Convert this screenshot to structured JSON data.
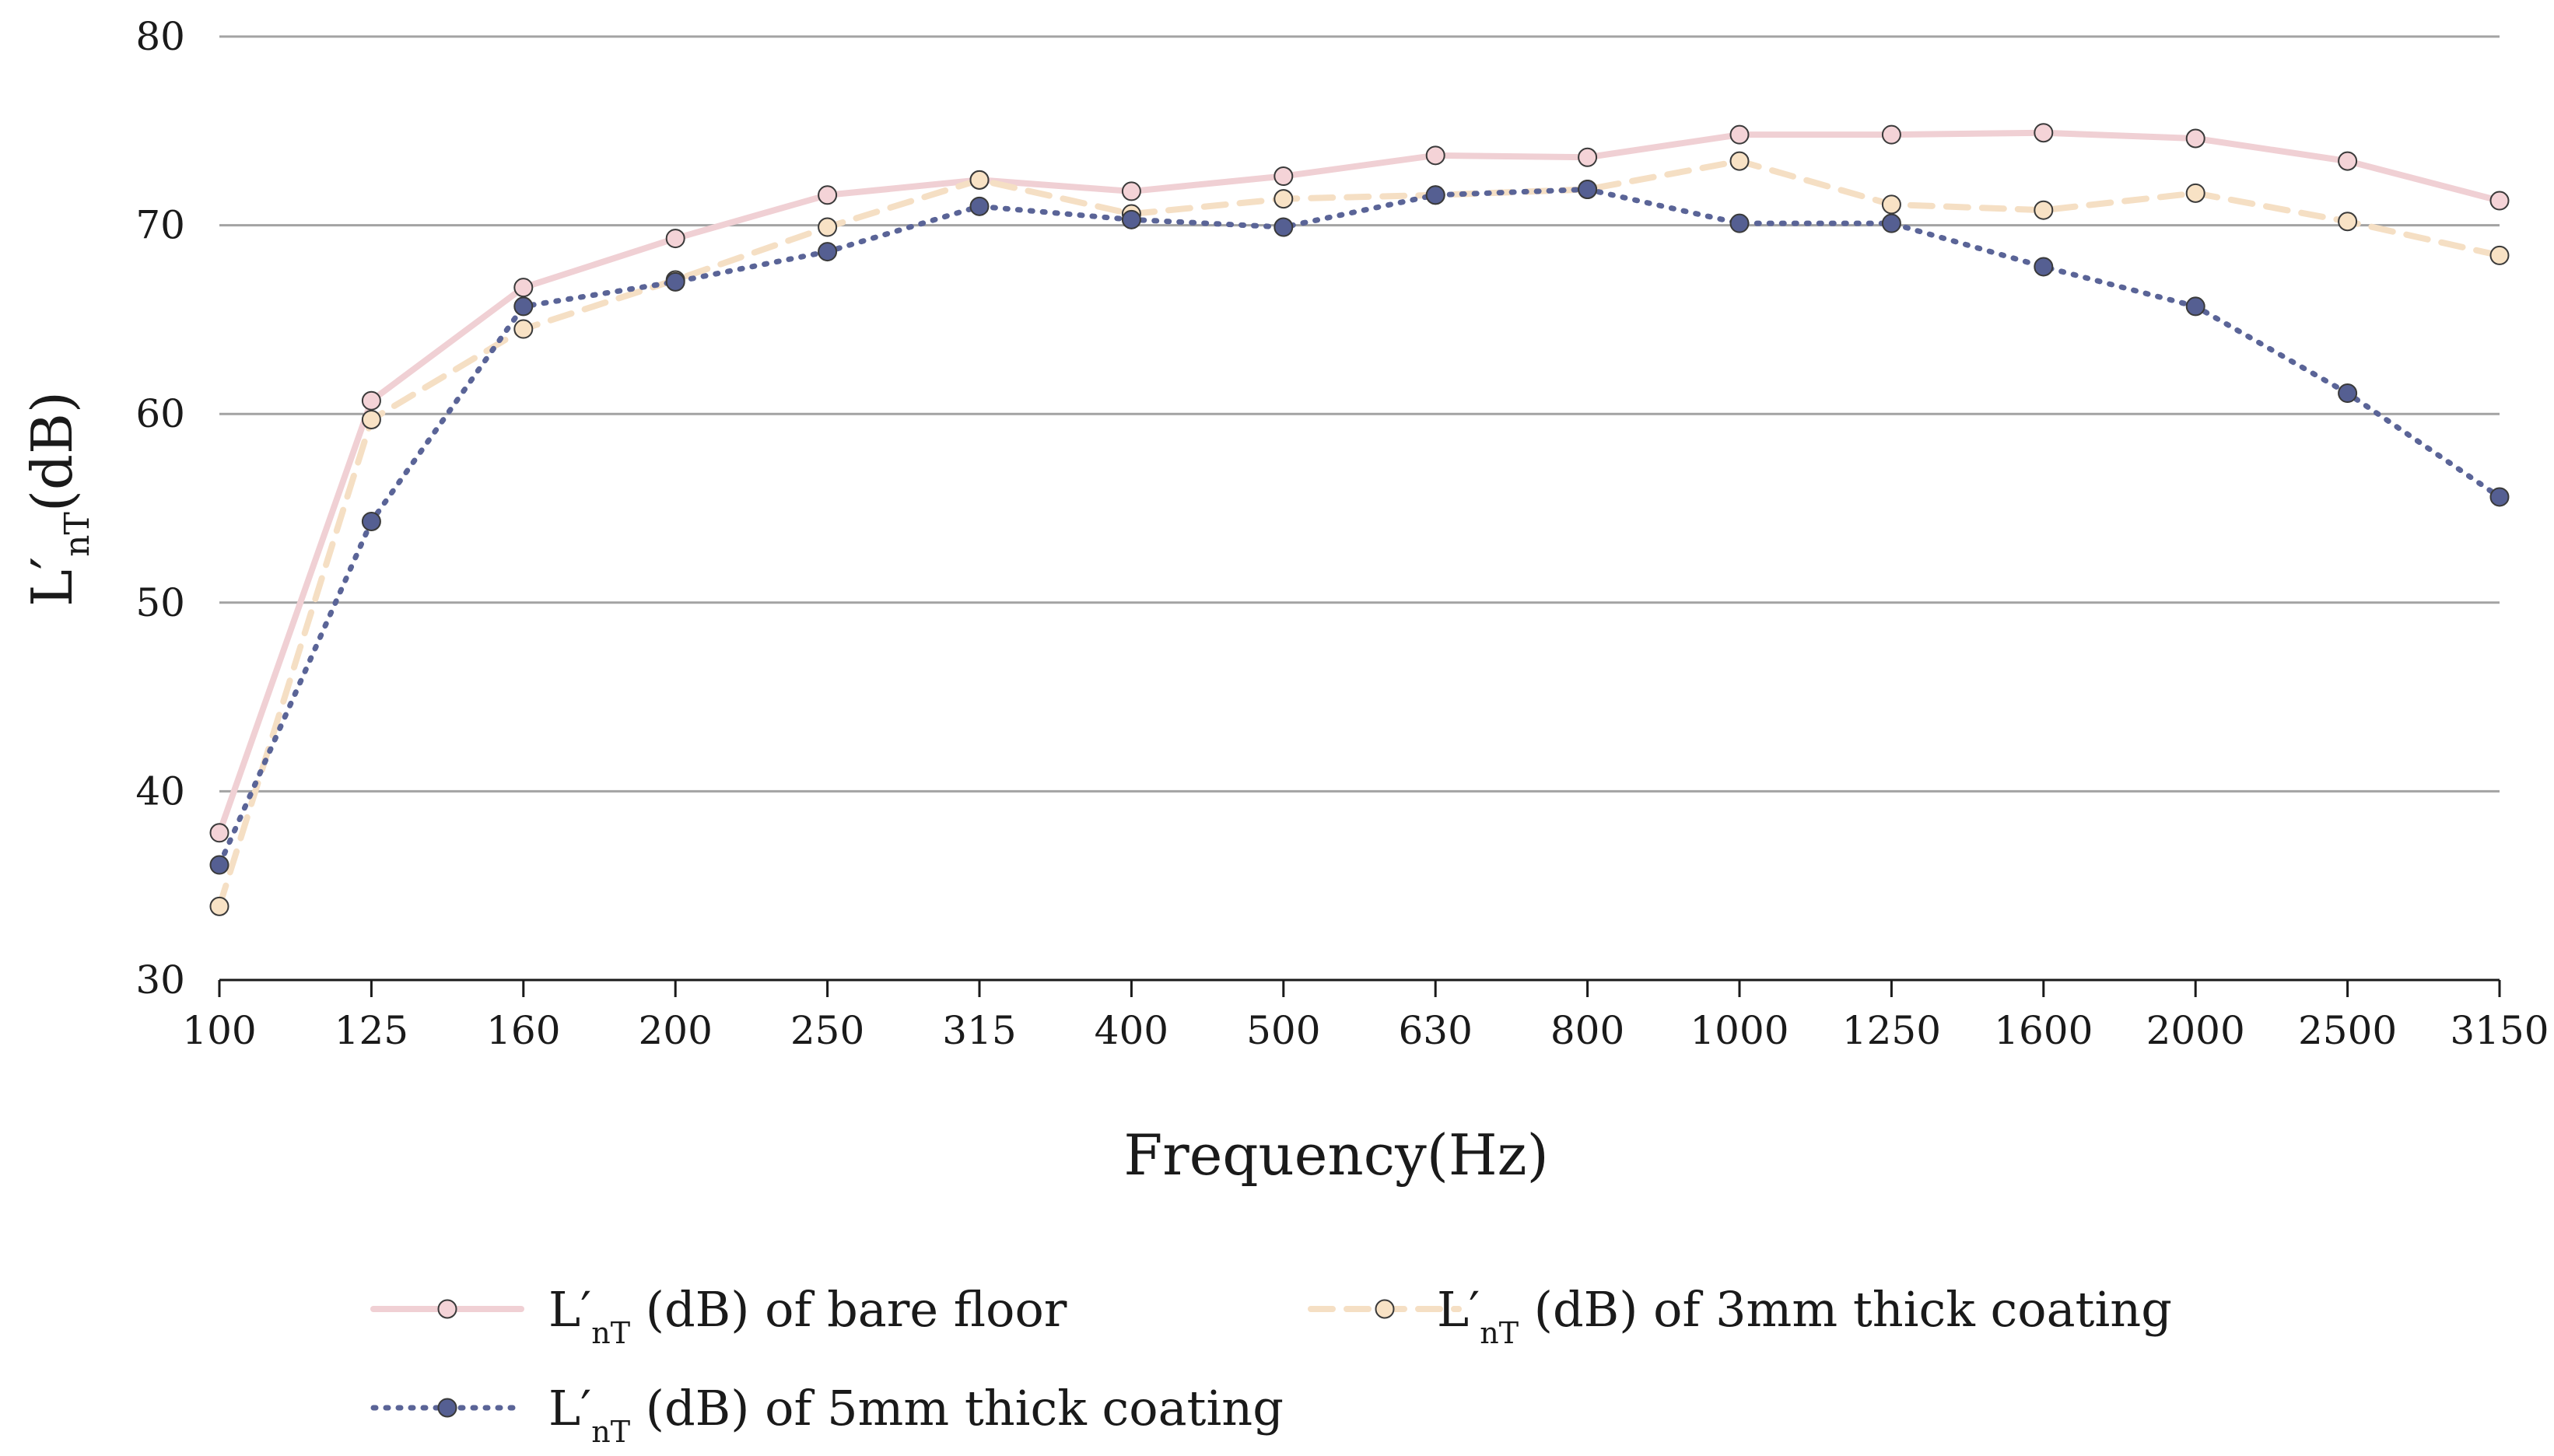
{
  "chart_data": {
    "type": "line",
    "title": "",
    "xlabel": "Frequency(Hz)",
    "ylabel": {
      "main": "L′",
      "sub": "nT",
      "unit": "(dB)"
    },
    "categories": [
      "100",
      "125",
      "160",
      "200",
      "250",
      "315",
      "400",
      "500",
      "630",
      "800",
      "1000",
      "1250",
      "1600",
      "2000",
      "2500",
      "3150"
    ],
    "ylim": [
      30,
      80
    ],
    "yticks": [
      "30",
      "40",
      "50",
      "60",
      "70",
      "80"
    ],
    "grid": true,
    "legend_position": "bottom",
    "series": [
      {
        "name": "L′nT (dB) of bare floor",
        "label": {
          "main": "L′",
          "sub": "nT",
          "rest": " (dB) of bare floor"
        },
        "line_color": "#f0d0d4",
        "marker_color": "#f4d3d7",
        "style": "solid",
        "values": [
          37.8,
          60.7,
          66.7,
          69.3,
          71.6,
          72.4,
          71.8,
          72.6,
          73.7,
          73.6,
          74.8,
          74.8,
          74.9,
          74.6,
          73.4,
          71.3
        ]
      },
      {
        "name": "L′nT (dB) of 3mm thick coating",
        "label": {
          "main": "L′",
          "sub": "nT",
          "rest": " (dB) of 3mm thick coating"
        },
        "line_color": "#f5dfc4",
        "marker_color": "#f8e2c5",
        "style": "dashed",
        "values": [
          33.9,
          59.7,
          64.5,
          67.1,
          69.9,
          72.4,
          70.6,
          71.4,
          71.6,
          71.9,
          73.4,
          71.1,
          70.8,
          71.7,
          70.2,
          68.4
        ]
      },
      {
        "name": "L′nT (dB) of 5mm thick coating",
        "label": {
          "main": "L′",
          "sub": "nT",
          "rest": " (dB) of 5mm thick coating"
        },
        "line_color": "#5a6497",
        "marker_color": "#555f92",
        "style": "dotted",
        "values": [
          36.1,
          54.3,
          65.7,
          67.0,
          68.6,
          71.0,
          70.3,
          69.9,
          71.6,
          71.9,
          70.1,
          70.1,
          67.8,
          65.7,
          61.1,
          55.6
        ]
      }
    ]
  }
}
